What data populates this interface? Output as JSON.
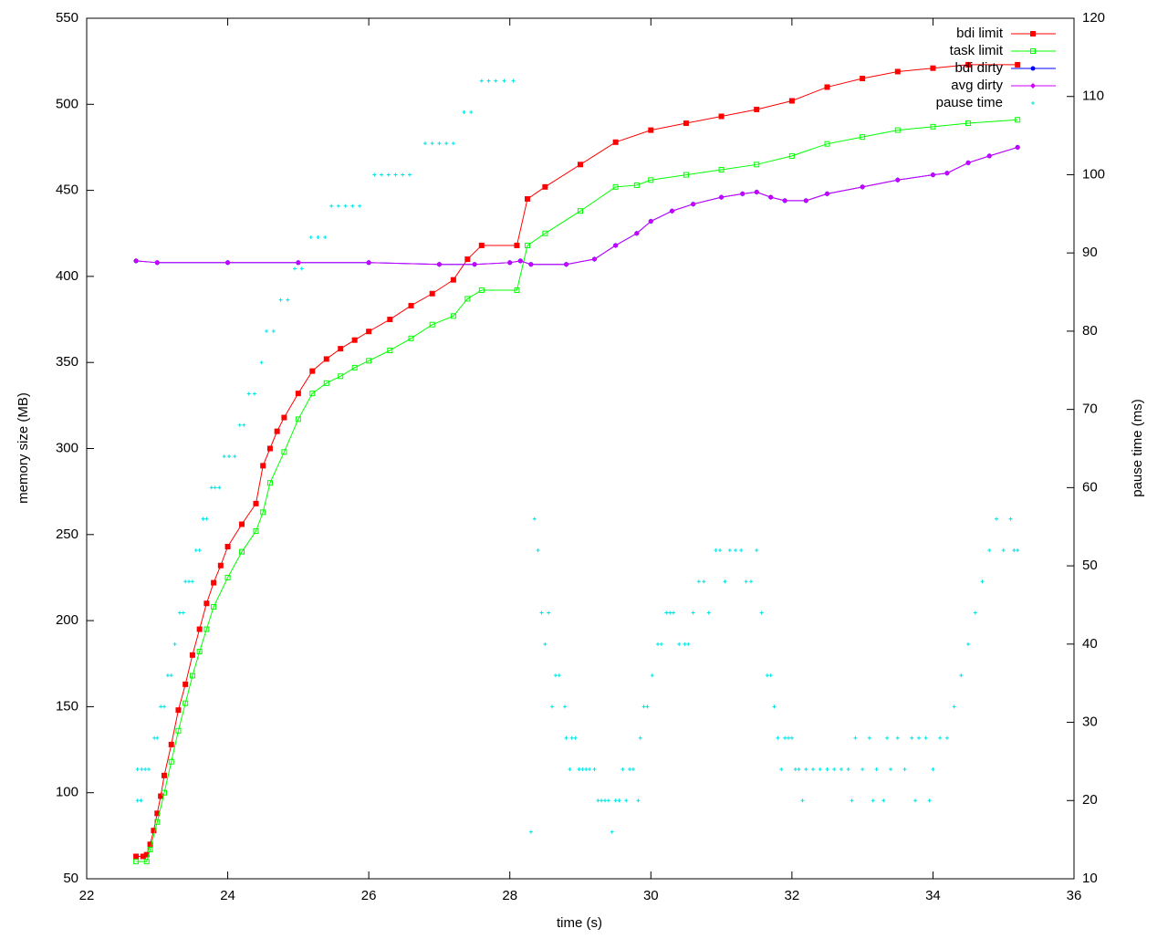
{
  "chart_data": {
    "type": "line",
    "xlabel": "time (s)",
    "ylabel": "memory size (MB)",
    "y2label": "pause time (ms)",
    "xlim": [
      22,
      36
    ],
    "xticks": [
      22,
      24,
      26,
      28,
      30,
      32,
      34,
      36
    ],
    "ylim": [
      50,
      550
    ],
    "yticks": [
      50,
      100,
      150,
      200,
      250,
      300,
      350,
      400,
      450,
      500,
      550
    ],
    "y2lim": [
      10,
      120
    ],
    "y2ticks": [
      10,
      20,
      30,
      40,
      50,
      60,
      70,
      80,
      90,
      100,
      110,
      120
    ],
    "legend": "top-right",
    "series": [
      {
        "name": "bdi limit",
        "color": "#ff0000",
        "style": "linespoints",
        "marker": "filled-square",
        "x": [
          22.7,
          22.8,
          22.85,
          22.9,
          22.95,
          23.0,
          23.05,
          23.1,
          23.2,
          23.3,
          23.4,
          23.5,
          23.6,
          23.7,
          23.8,
          23.9,
          24.0,
          24.2,
          24.4,
          24.5,
          24.6,
          24.7,
          24.8,
          25.0,
          25.2,
          25.4,
          25.6,
          25.8,
          26.0,
          26.3,
          26.6,
          26.9,
          27.2,
          27.4,
          27.6,
          28.1,
          28.25,
          28.5,
          29.0,
          29.5,
          30.0,
          30.5,
          31.0,
          31.5,
          32.0,
          32.5,
          33.0,
          33.5,
          34.0,
          34.5,
          35.2
        ],
        "values": [
          63,
          63,
          64,
          70,
          78,
          88,
          98,
          110,
          128,
          148,
          163,
          180,
          195,
          210,
          222,
          232,
          243,
          256,
          268,
          290,
          300,
          310,
          318,
          332,
          345,
          352,
          358,
          363,
          368,
          375,
          383,
          390,
          398,
          410,
          418,
          418,
          445,
          452,
          465,
          478,
          485,
          489,
          493,
          497,
          502,
          510,
          515,
          519,
          521,
          523,
          523
        ]
      },
      {
        "name": "task limit",
        "color": "#00ff00",
        "style": "linespoints",
        "marker": "open-square",
        "x": [
          22.7,
          22.85,
          22.9,
          23.0,
          23.1,
          23.2,
          23.3,
          23.4,
          23.5,
          23.6,
          23.7,
          23.8,
          24.0,
          24.2,
          24.4,
          24.5,
          24.6,
          24.8,
          25.0,
          25.2,
          25.4,
          25.6,
          25.8,
          26.0,
          26.3,
          26.6,
          26.9,
          27.2,
          27.4,
          27.6,
          28.1,
          28.25,
          28.5,
          29.0,
          29.5,
          29.8,
          30.0,
          30.5,
          31.0,
          31.5,
          32.0,
          32.5,
          33.0,
          33.5,
          34.0,
          34.5,
          35.2
        ],
        "values": [
          60,
          60,
          67,
          83,
          100,
          118,
          136,
          152,
          168,
          182,
          195,
          208,
          225,
          240,
          252,
          263,
          280,
          298,
          317,
          332,
          338,
          342,
          347,
          351,
          357,
          364,
          372,
          377,
          387,
          392,
          392,
          418,
          425,
          438,
          452,
          453,
          456,
          459,
          462,
          465,
          470,
          477,
          481,
          485,
          487,
          489,
          491
        ]
      },
      {
        "name": "bdi dirty",
        "color": "#0000ff",
        "style": "linespoints",
        "marker": "dot",
        "x": [
          22.7,
          23.0,
          24.0,
          25.0,
          26.0,
          27.0,
          27.5,
          28.0,
          28.15,
          28.3,
          28.8,
          29.2,
          29.5,
          29.8,
          30.0,
          30.3,
          30.6,
          31.0,
          31.3,
          31.5,
          31.7,
          31.9,
          32.2,
          32.5,
          33.0,
          33.5,
          34.0,
          34.2,
          34.5,
          34.8,
          35.2
        ],
        "values": [
          409,
          408,
          408,
          408,
          408,
          407,
          407,
          408,
          409,
          407,
          407,
          410,
          418,
          425,
          432,
          438,
          442,
          446,
          448,
          449,
          446,
          444,
          444,
          448,
          452,
          456,
          459,
          460,
          466,
          470,
          475
        ]
      },
      {
        "name": "avg dirty",
        "color": "#cc00ff",
        "style": "linespoints",
        "marker": "diamond",
        "x": [
          22.7,
          23.0,
          24.0,
          25.0,
          26.0,
          27.0,
          27.5,
          28.0,
          28.15,
          28.3,
          28.8,
          29.2,
          29.5,
          29.8,
          30.0,
          30.3,
          30.6,
          31.0,
          31.3,
          31.5,
          31.7,
          31.9,
          32.2,
          32.5,
          33.0,
          33.5,
          34.0,
          34.2,
          34.5,
          34.8,
          35.2
        ],
        "values": [
          409,
          408,
          408,
          408,
          408,
          407,
          407,
          408,
          409,
          407,
          407,
          410,
          418,
          425,
          432,
          438,
          442,
          446,
          448,
          449,
          446,
          444,
          444,
          448,
          452,
          456,
          459,
          460,
          466,
          470,
          475
        ]
      },
      {
        "name": "pause time",
        "color": "#00e5e5",
        "style": "points",
        "marker": "plus",
        "axis": "y2",
        "x": [
          22.72,
          22.77,
          22.72,
          22.78,
          22.83,
          22.88,
          22.96,
          23.0,
          23.05,
          23.1,
          23.15,
          23.2,
          23.25,
          23.32,
          23.37,
          23.4,
          23.45,
          23.5,
          23.55,
          23.6,
          23.65,
          23.7,
          23.77,
          23.82,
          23.88,
          23.95,
          24.02,
          24.1,
          24.17,
          24.23,
          24.3,
          24.38,
          24.48,
          24.55,
          24.65,
          24.75,
          24.85,
          24.95,
          25.05,
          25.18,
          25.28,
          25.38,
          25.47,
          25.57,
          25.67,
          25.77,
          25.87,
          26.08,
          26.18,
          26.28,
          26.38,
          26.48,
          26.58,
          26.8,
          26.9,
          27.0,
          27.1,
          27.2,
          27.35,
          27.45,
          27.6,
          27.7,
          27.8,
          27.92,
          28.05,
          28.3,
          28.35,
          28.4,
          28.45,
          28.5,
          28.55,
          28.6,
          28.65,
          28.7,
          28.78,
          28.8,
          28.85,
          28.88,
          28.93,
          28.98,
          29.03,
          29.08,
          29.13,
          29.2,
          29.25,
          29.3,
          29.35,
          29.4,
          29.45,
          29.5,
          29.55,
          29.6,
          29.65,
          29.7,
          29.75,
          29.82,
          29.85,
          29.9,
          29.95,
          30.02,
          30.1,
          30.15,
          30.22,
          30.27,
          30.32,
          30.4,
          30.48,
          30.53,
          30.6,
          30.68,
          30.75,
          30.82,
          30.92,
          30.98,
          31.05,
          31.12,
          31.2,
          31.28,
          31.35,
          31.42,
          31.5,
          31.57,
          31.65,
          31.7,
          31.75,
          31.8,
          31.85,
          31.9,
          31.95,
          32.0,
          32.05,
          32.1,
          32.15,
          32.2,
          32.3,
          32.4,
          32.5,
          32.6,
          32.7,
          32.8,
          32.85,
          32.9,
          33.0,
          33.1,
          33.15,
          33.2,
          33.3,
          33.35,
          33.4,
          33.5,
          33.6,
          33.7,
          33.75,
          33.8,
          33.9,
          33.95,
          34.0,
          34.1,
          34.2,
          34.3,
          34.4,
          34.5,
          34.6,
          34.7,
          34.8,
          34.9,
          35.0,
          35.1,
          35.15,
          35.2
        ],
        "values": [
          20,
          20,
          24,
          24,
          24,
          24,
          28,
          28,
          32,
          32,
          36,
          36,
          40,
          44,
          44,
          48,
          48,
          48,
          52,
          52,
          56,
          56,
          60,
          60,
          60,
          64,
          64,
          64,
          68,
          68,
          72,
          72,
          76,
          80,
          80,
          84,
          84,
          88,
          88,
          92,
          92,
          92,
          96,
          96,
          96,
          96,
          96,
          100,
          100,
          100,
          100,
          100,
          100,
          104,
          104,
          104,
          104,
          104,
          108,
          108,
          112,
          112,
          112,
          112,
          112,
          16,
          56,
          52,
          44,
          40,
          44,
          32,
          36,
          36,
          32,
          28,
          24,
          28,
          28,
          24,
          24,
          24,
          24,
          24,
          20,
          20,
          20,
          20,
          16,
          20,
          20,
          24,
          20,
          24,
          24,
          20,
          28,
          32,
          32,
          36,
          40,
          40,
          44,
          44,
          44,
          40,
          40,
          40,
          44,
          48,
          48,
          44,
          52,
          52,
          48,
          52,
          52,
          52,
          48,
          48,
          52,
          44,
          36,
          36,
          32,
          28,
          24,
          28,
          28,
          28,
          24,
          24,
          20,
          24,
          24,
          24,
          24,
          24,
          24,
          24,
          20,
          28,
          24,
          28,
          20,
          24,
          20,
          28,
          24,
          28,
          24,
          28,
          20,
          28,
          28,
          20,
          24,
          28,
          28,
          32,
          36,
          40,
          44,
          48,
          52,
          56,
          52,
          56,
          52,
          52
        ]
      }
    ]
  }
}
